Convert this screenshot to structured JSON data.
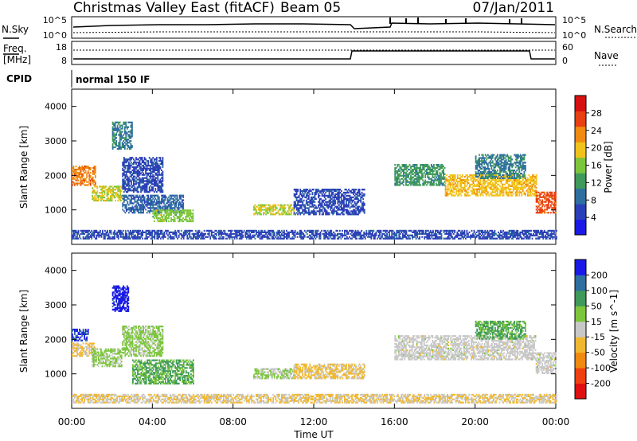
{
  "header": {
    "title": "Christmas Valley East (fitACF)",
    "beam": "Beam 05",
    "date": "07/Jan/2011"
  },
  "noise_panel": {
    "left_label": "N.Sky",
    "right_label": "N.Search",
    "left_ticks": [
      "10^5",
      "10^0"
    ],
    "right_ticks": [
      "10^5",
      "10^0"
    ]
  },
  "freq_panel": {
    "left_label_1": "Freq.",
    "left_label_2": "[MHz]",
    "left_ticks": [
      "18",
      "8"
    ],
    "right_label": "Nave",
    "right_ticks": [
      "60",
      "0"
    ]
  },
  "cpid": {
    "label": "CPID",
    "mode": "normal 150 IF"
  },
  "xaxis": {
    "label": "Time UT",
    "ticks": [
      "00:00",
      "04:00",
      "08:00",
      "12:00",
      "16:00",
      "20:00",
      "00:00"
    ]
  },
  "chart_data": [
    {
      "type": "heatmap",
      "name": "power-panel",
      "ylabel": "Slant Range [km]",
      "xlabel": "",
      "xlim": [
        0,
        24
      ],
      "ylim": [
        0,
        4500
      ],
      "yticks": [
        "1000",
        "2000",
        "3000",
        "4000"
      ],
      "colorbar": {
        "label": "Power [dB]",
        "ticks": [
          "4",
          "8",
          "12",
          "16",
          "20",
          "24",
          "28"
        ],
        "range": [
          0,
          32
        ],
        "colors": [
          "#1a1ae6",
          "#2b3fb8",
          "#2e6fa0",
          "#3f9a5a",
          "#7cc63c",
          "#f0c21a",
          "#f08a10",
          "#e84010",
          "#d81010"
        ]
      },
      "echo_regions": [
        {
          "t0": 0.0,
          "t1": 1.2,
          "r0": 1700,
          "r1": 2250,
          "value": 24
        },
        {
          "t0": 1.0,
          "t1": 2.5,
          "r0": 1250,
          "r1": 1700,
          "value": 18
        },
        {
          "t0": 2.0,
          "t1": 3.0,
          "r0": 2750,
          "r1": 3550,
          "value": 10
        },
        {
          "t0": 2.5,
          "t1": 4.5,
          "r0": 1500,
          "r1": 2500,
          "value": 6
        },
        {
          "t0": 2.5,
          "t1": 5.5,
          "r0": 900,
          "r1": 1400,
          "value": 8
        },
        {
          "t0": 4.0,
          "t1": 6.0,
          "r0": 650,
          "r1": 1000,
          "value": 16
        },
        {
          "t0": 9.0,
          "t1": 11.0,
          "r0": 850,
          "r1": 1150,
          "value": 18
        },
        {
          "t0": 11.0,
          "t1": 14.5,
          "r0": 850,
          "r1": 1600,
          "value": 6
        },
        {
          "t0": 16.0,
          "t1": 18.5,
          "r0": 1700,
          "r1": 2300,
          "value": 12
        },
        {
          "t0": 18.5,
          "t1": 23.0,
          "r0": 1400,
          "r1": 2000,
          "value": 20
        },
        {
          "t0": 20.0,
          "t1": 22.5,
          "r0": 1900,
          "r1": 2600,
          "value": 10
        },
        {
          "t0": 23.0,
          "t1": 24.0,
          "r0": 900,
          "r1": 1500,
          "value": 26
        },
        {
          "t0": 0.0,
          "t1": 24.0,
          "r0": 150,
          "r1": 400,
          "value": 6
        }
      ]
    },
    {
      "type": "heatmap",
      "name": "velocity-panel",
      "ylabel": "Slant Range [km]",
      "xlabel": "Time UT",
      "xlim": [
        0,
        24
      ],
      "ylim": [
        0,
        4500
      ],
      "yticks": [
        "1000",
        "2000",
        "3000",
        "4000"
      ],
      "colorbar": {
        "label": "Velocity [m s^-1]",
        "ticks": [
          "200",
          "100",
          "50",
          "15",
          "-15",
          "-50",
          "-100",
          "-200"
        ],
        "range": [
          -250,
          250
        ],
        "colors": [
          "#e01010",
          "#f04010",
          "#f08a10",
          "#f0b830",
          "#c8c8c8",
          "#7cc63c",
          "#3f9a5a",
          "#2e6fa0",
          "#1a1ae6"
        ]
      },
      "echo_regions": [
        {
          "t0": 0.0,
          "t1": 0.8,
          "r0": 1950,
          "r1": 2300,
          "value": 200
        },
        {
          "t0": 0.0,
          "t1": 1.2,
          "r0": 1500,
          "r1": 1900,
          "value": -30
        },
        {
          "t0": 1.0,
          "t1": 2.5,
          "r0": 1200,
          "r1": 1700,
          "value": 40
        },
        {
          "t0": 2.0,
          "t1": 2.8,
          "r0": 2800,
          "r1": 3550,
          "value": 220
        },
        {
          "t0": 2.5,
          "t1": 4.5,
          "r0": 1500,
          "r1": 2400,
          "value": 40
        },
        {
          "t0": 3.0,
          "t1": 6.0,
          "r0": 700,
          "r1": 1400,
          "value": 90
        },
        {
          "t0": 9.0,
          "t1": 11.0,
          "r0": 850,
          "r1": 1150,
          "value": 30
        },
        {
          "t0": 11.0,
          "t1": 14.5,
          "r0": 850,
          "r1": 1300,
          "value": -40
        },
        {
          "t0": 16.0,
          "t1": 23.0,
          "r0": 1400,
          "r1": 2100,
          "value": 0
        },
        {
          "t0": 20.0,
          "t1": 22.5,
          "r0": 2000,
          "r1": 2500,
          "value": 90
        },
        {
          "t0": 23.0,
          "t1": 24.0,
          "r0": 1000,
          "r1": 1600,
          "value": 0
        },
        {
          "t0": 0.0,
          "t1": 24.0,
          "r0": 150,
          "r1": 400,
          "value": -30
        }
      ]
    }
  ]
}
